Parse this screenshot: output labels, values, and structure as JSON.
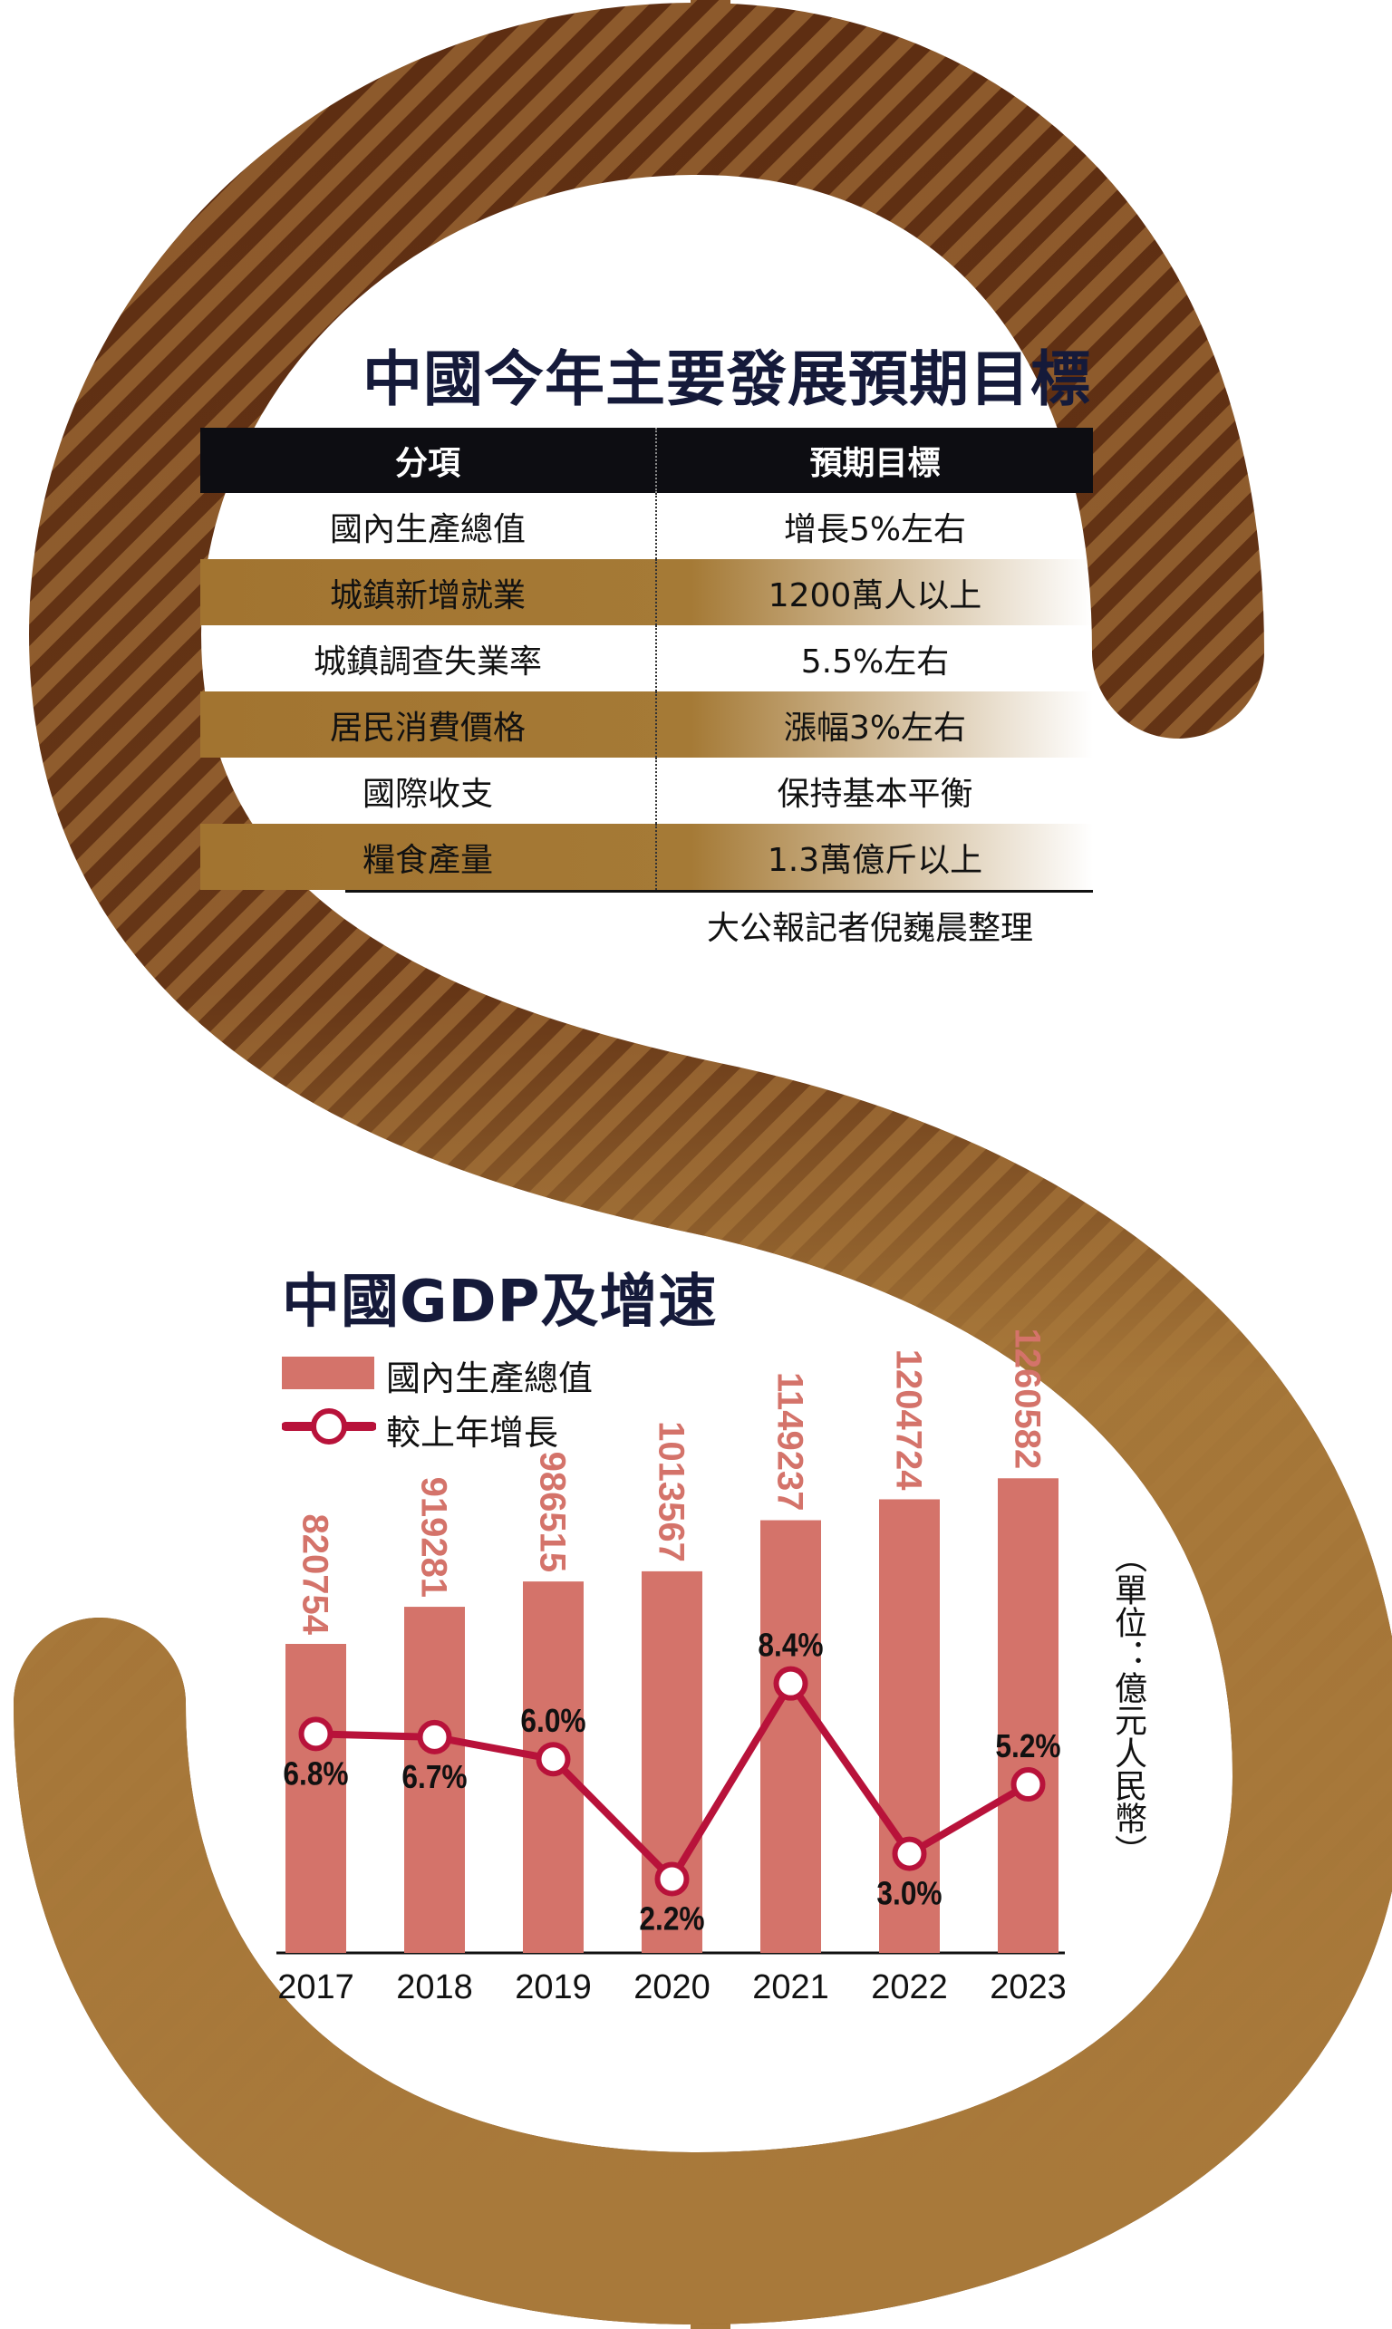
{
  "colors": {
    "bar": "#d4736a",
    "line": "#b8123a",
    "title": "#151a3a",
    "stripe_dark": "#6a3515",
    "stripe_light": "#8d5a2c",
    "gold": "#a8793a"
  },
  "table": {
    "title": "中國今年主要發展預期目標",
    "headers": [
      "分項",
      "預期目標"
    ],
    "rows": [
      [
        "國內生產總值",
        "增長5%左右"
      ],
      [
        "城鎮新增就業",
        "1200萬人以上"
      ],
      [
        "城鎮調查失業率",
        "5.5%左右"
      ],
      [
        "居民消費價格",
        "漲幅3%左右"
      ],
      [
        "國際收支",
        "保持基本平衡"
      ],
      [
        "糧食產量",
        "1.3萬億斤以上"
      ]
    ],
    "credit": "大公報記者倪巍晨整理"
  },
  "chart_data": {
    "type": "bar+line",
    "title": "中國GDP及增速",
    "unit": "（單位：億元人民幣）",
    "categories": [
      "2017",
      "2018",
      "2019",
      "2020",
      "2021",
      "2022",
      "2023"
    ],
    "series": [
      {
        "name": "國內生產總值",
        "type": "bar",
        "values": [
          820754,
          919281,
          986515,
          1013567,
          1149237,
          1204724,
          1260582
        ]
      },
      {
        "name": "較上年增長",
        "type": "line",
        "values": [
          6.8,
          6.7,
          6.0,
          2.2,
          8.4,
          3.0,
          5.2
        ],
        "labels": [
          "6.8%",
          "6.7%",
          "6.0%",
          "2.2%",
          "8.4%",
          "3.0%",
          "5.2%"
        ]
      }
    ],
    "grid": false,
    "legend": "top-left"
  }
}
